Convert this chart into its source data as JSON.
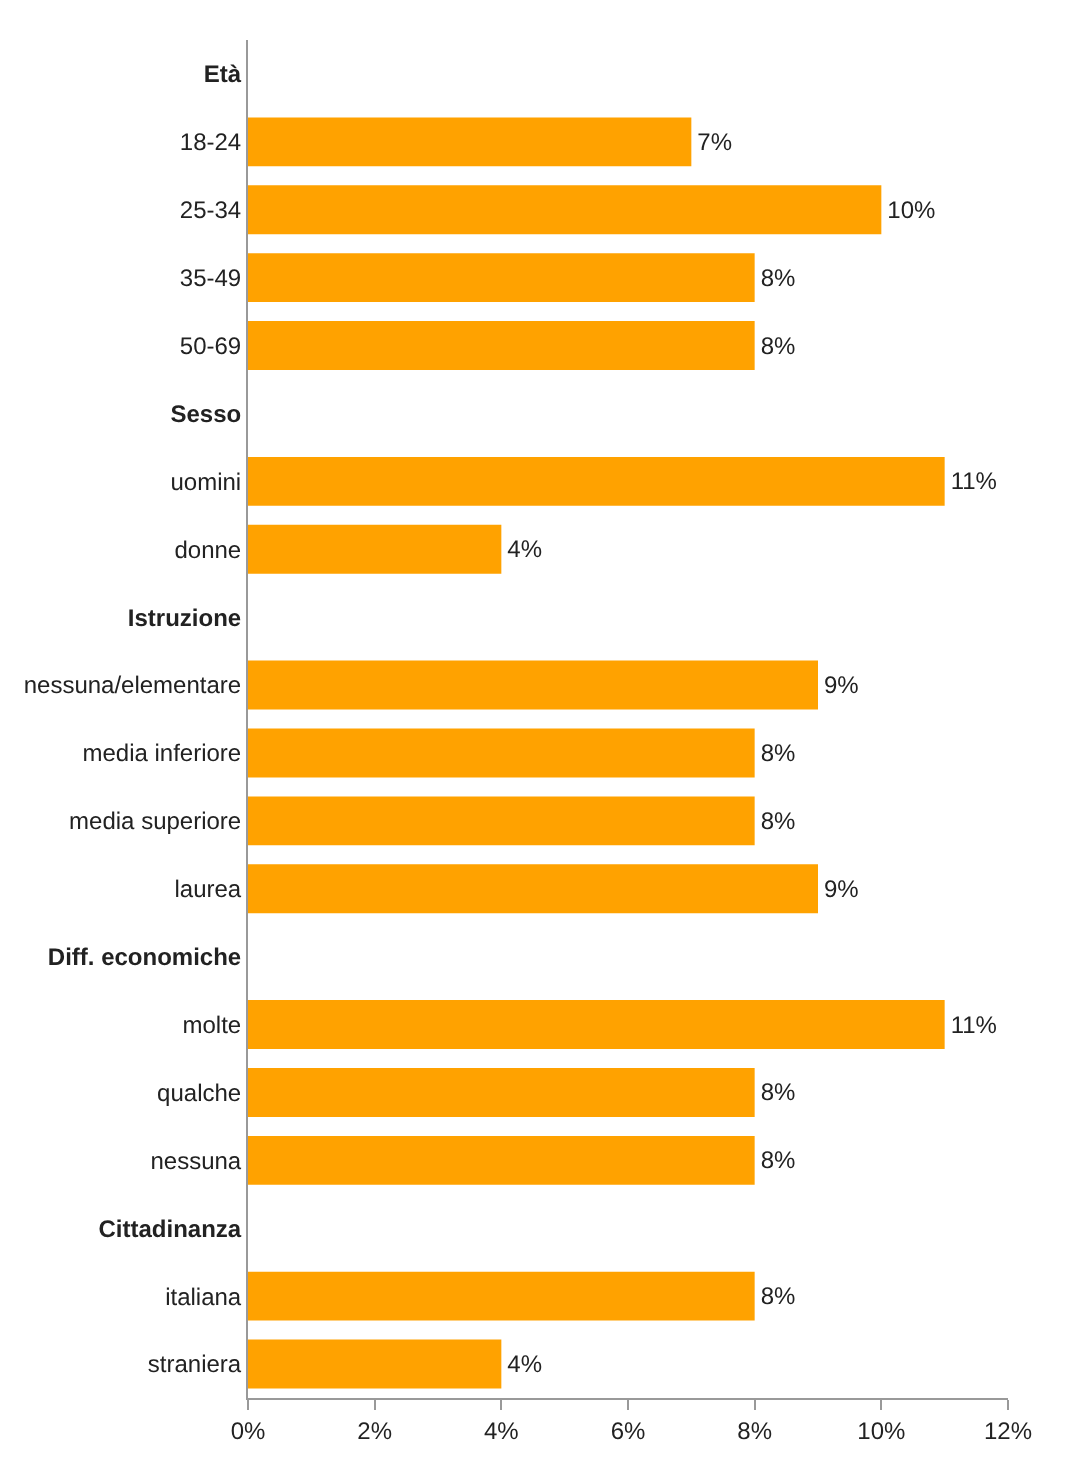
{
  "chart_data": {
    "type": "bar",
    "orientation": "horizontal",
    "categories": [
      "Età",
      "18-24",
      "25-34",
      "35-49",
      "50-69",
      "Sesso",
      "uomini",
      "donne",
      "Istruzione",
      "nessuna/elementare",
      "media inferiore",
      "media superiore",
      "laurea",
      "Diff. economiche",
      "molte",
      "qualche",
      "nessuna",
      "Cittadinanza",
      "italiana",
      "straniera"
    ],
    "values": [
      null,
      7,
      10,
      8,
      8,
      null,
      11,
      4,
      null,
      9,
      8,
      8,
      9,
      null,
      11,
      8,
      8,
      null,
      8,
      4
    ],
    "value_labels": [
      null,
      "7%",
      "10%",
      "8%",
      "8%",
      null,
      "11%",
      "4%",
      null,
      "9%",
      "8%",
      "8%",
      "9%",
      null,
      "11%",
      "8%",
      "8%",
      null,
      "8%",
      "4%"
    ],
    "color": "#ffa200",
    "xlim": [
      0,
      12
    ],
    "xticks": [
      {
        "value": 0,
        "label": "0%"
      },
      {
        "value": 2,
        "label": "2%"
      },
      {
        "value": 4,
        "label": "4%"
      },
      {
        "value": 6,
        "label": "6%"
      },
      {
        "value": 8,
        "label": "8%"
      },
      {
        "value": 10,
        "label": "10%"
      },
      {
        "value": 12,
        "label": "12%"
      }
    ]
  }
}
